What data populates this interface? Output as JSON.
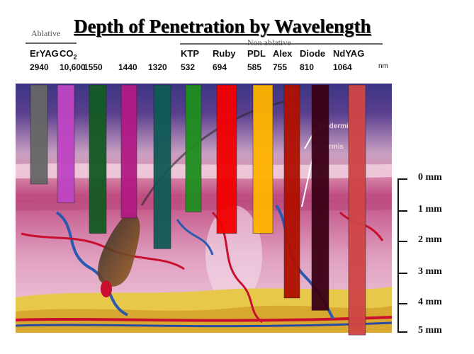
{
  "title": "Depth of Penetration by Wavelength",
  "groups": {
    "ablative": "Ablative",
    "non_ablative": "Non ablative"
  },
  "unit": "nm",
  "layer_labels": {
    "epidermis": "Epidermis",
    "dermis": "Dermis"
  },
  "lasers": [
    {
      "name": "ErYAG",
      "wavelength": "2940",
      "color": "#666666",
      "depth_mm": 0
    },
    {
      "name": "CO2",
      "wavelength": "10,600",
      "color": "#bf45c4",
      "depth_mm": 0.6
    },
    {
      "name": "",
      "wavelength": "1550",
      "color": "#135b23",
      "depth_mm": 1.6
    },
    {
      "name": "",
      "wavelength": "1440",
      "color": "#b21a86",
      "depth_mm": 1.1
    },
    {
      "name": "",
      "wavelength": "1320",
      "color": "#0f5a55",
      "depth_mm": 2.1
    },
    {
      "name": "KTP",
      "wavelength": "532",
      "color": "#1e8f1e",
      "depth_mm": 0.9
    },
    {
      "name": "Ruby",
      "wavelength": "694",
      "color": "#f20000",
      "depth_mm": 1.6
    },
    {
      "name": "PDL",
      "wavelength": "585",
      "color": "#ffb400",
      "depth_mm": 1.6
    },
    {
      "name": "Alex",
      "wavelength": "755",
      "color": "#b01000",
      "depth_mm": 3.7
    },
    {
      "name": "Diode",
      "wavelength": "810",
      "color": "#3b0016",
      "depth_mm": 4.1
    },
    {
      "name": "NdYAG",
      "wavelength": "1064",
      "color": "#cf4545",
      "depth_mm": 4.9
    }
  ],
  "depth_scale": [
    {
      "mm": 0,
      "label": "0 mm"
    },
    {
      "mm": 1,
      "label": "1 mm"
    },
    {
      "mm": 2,
      "label": "2 mm"
    },
    {
      "mm": 3,
      "label": "3 mm"
    },
    {
      "mm": 4,
      "label": "4 mm"
    },
    {
      "mm": 5,
      "label": "5 mm"
    }
  ]
}
